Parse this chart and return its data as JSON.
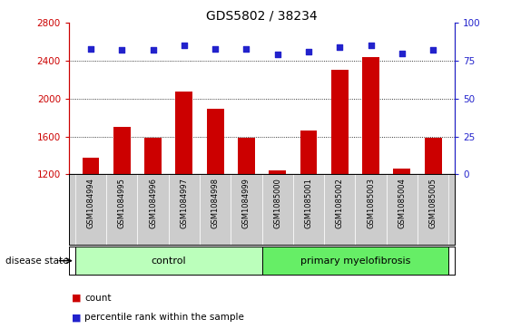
{
  "title": "GDS5802 / 38234",
  "samples": [
    "GSM1084994",
    "GSM1084995",
    "GSM1084996",
    "GSM1084997",
    "GSM1084998",
    "GSM1084999",
    "GSM1085000",
    "GSM1085001",
    "GSM1085002",
    "GSM1085003",
    "GSM1085004",
    "GSM1085005"
  ],
  "counts": [
    1380,
    1700,
    1590,
    2080,
    1890,
    1590,
    1240,
    1660,
    2310,
    2440,
    1260,
    1590
  ],
  "percentiles": [
    83,
    82,
    82,
    85,
    83,
    83,
    79,
    81,
    84,
    85,
    80,
    82
  ],
  "ylim_left": [
    1200,
    2800
  ],
  "ylim_right": [
    0,
    100
  ],
  "yticks_left": [
    1200,
    1600,
    2000,
    2400,
    2800
  ],
  "yticks_right": [
    0,
    25,
    50,
    75,
    100
  ],
  "grid_values": [
    1600,
    2000,
    2400
  ],
  "bar_color": "#cc0000",
  "dot_color": "#2222cc",
  "control_color": "#bbffbb",
  "myelofibrosis_color": "#66ee66",
  "control_samples": 6,
  "disease_state_label": "disease state",
  "control_label": "control",
  "myelofibrosis_label": "primary myelofibrosis",
  "legend_count_label": "count",
  "legend_percentile_label": "percentile rank within the sample",
  "tick_label_color": "#cc0000",
  "right_tick_color": "#2222cc",
  "background_color": "#ffffff",
  "tick_area_color": "#cccccc"
}
